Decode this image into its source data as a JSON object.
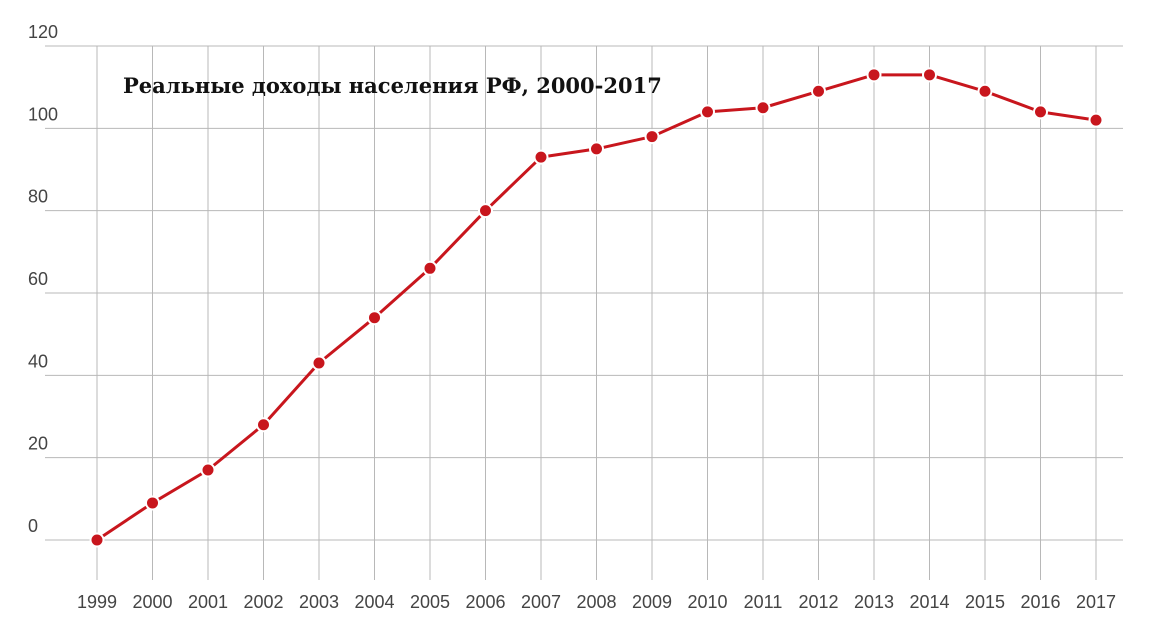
{
  "chart_data": {
    "type": "line",
    "title": "Реальные доходы населения РФ, 2000-2017",
    "xlabel": "",
    "ylabel": "",
    "categories": [
      "1999",
      "2000",
      "2001",
      "2002",
      "2003",
      "2004",
      "2005",
      "2006",
      "2007",
      "2008",
      "2009",
      "2010",
      "2011",
      "2012",
      "2013",
      "2014",
      "2015",
      "2016",
      "2017"
    ],
    "series": [
      {
        "values": [
          0,
          9,
          17,
          28,
          43,
          54,
          66,
          80,
          93,
          95,
          98,
          104,
          105,
          109,
          113,
          113,
          109,
          104,
          102
        ]
      }
    ],
    "ylim": [
      0,
      120
    ],
    "yticks": [
      "0",
      "20",
      "40",
      "60",
      "80",
      "100",
      "120"
    ],
    "grid": true,
    "legend": "none"
  },
  "colors": {
    "series": "#c8161d",
    "grid": "#b8b8b8",
    "text": "#444444"
  }
}
